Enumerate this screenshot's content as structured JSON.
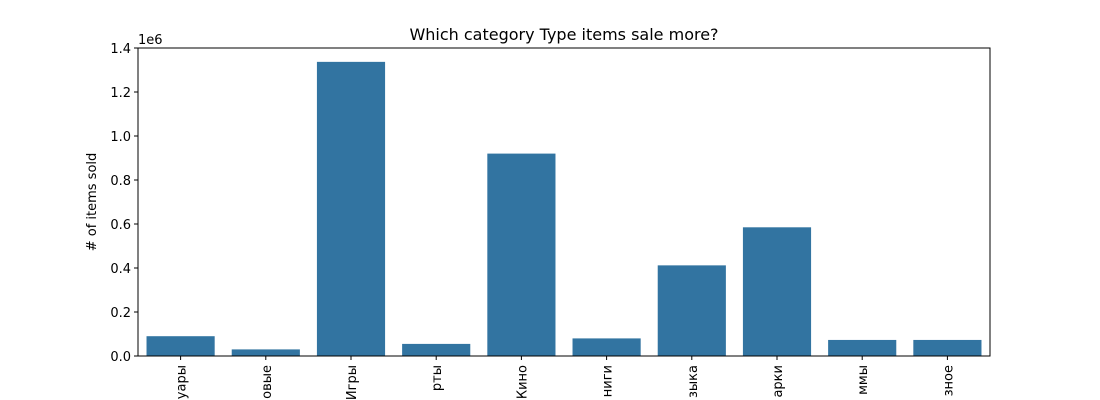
{
  "chart_data": {
    "type": "bar",
    "title": "Which category Type items sale more?",
    "xlabel": "",
    "ylabel": "# of items sold",
    "offset_label": "1e6",
    "categories": [
      "уары",
      "овые",
      "Игры",
      "рты",
      "Кино",
      "ниги",
      "зыка",
      "арки",
      "ммы",
      "зное"
    ],
    "values": [
      90000,
      30000,
      1337000,
      55000,
      920000,
      80000,
      412000,
      585000,
      73000,
      73000
    ],
    "ylim": [
      0,
      1400000
    ],
    "yticks": [
      0,
      200000,
      400000,
      600000,
      800000,
      1000000,
      1200000,
      1400000
    ],
    "ytick_labels": [
      "0.0",
      "0.2",
      "0.4",
      "0.6",
      "0.8",
      "1.0",
      "1.2",
      "1.4"
    ],
    "bar_color": "#3274a1",
    "grid": false,
    "legend": "none"
  }
}
